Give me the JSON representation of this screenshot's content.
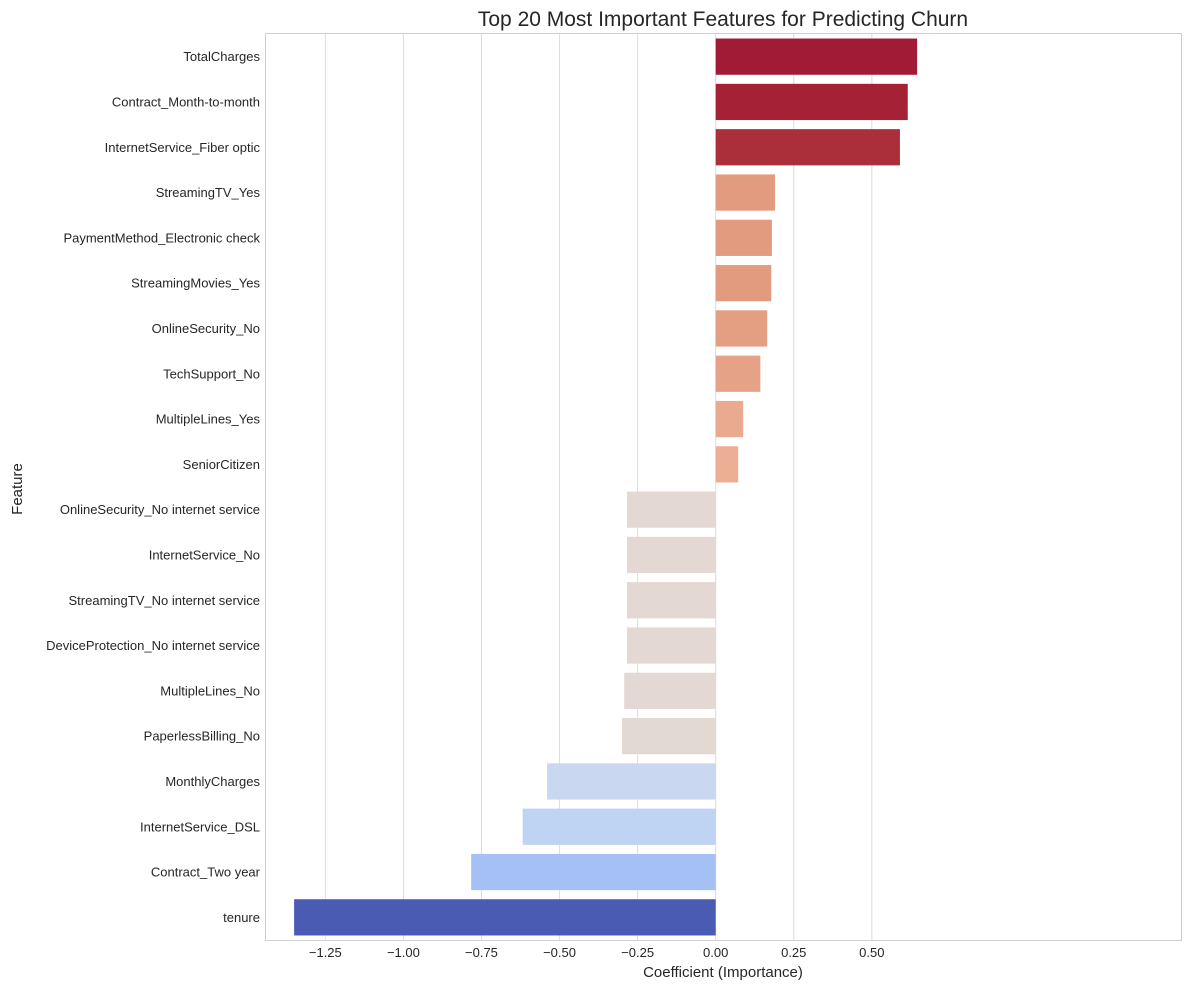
{
  "chart_data": {
    "type": "bar",
    "orientation": "horizontal",
    "title": "Top 20 Most Important Features for Predicting Churn",
    "xlabel": "Coefficient (Importance)",
    "ylabel": "Feature",
    "xlim": [
      -1.44,
      1.49
    ],
    "grid": "vertical",
    "xticks": [
      -1.25,
      -1.0,
      -0.75,
      -0.5,
      -0.25,
      0.0,
      0.25,
      0.5
    ],
    "xtick_labels": [
      "−1.25",
      "−1.00",
      "−0.75",
      "−0.50",
      "−0.25",
      "0.00",
      "0.25",
      "0.50"
    ],
    "categories": [
      "TotalCharges",
      "Contract_Month-to-month",
      "InternetService_Fiber optic",
      "StreamingTV_Yes",
      "PaymentMethod_Electronic check",
      "StreamingMovies_Yes",
      "OnlineSecurity_No",
      "TechSupport_No",
      "MultipleLines_Yes",
      "SeniorCitizen",
      "OnlineSecurity_No internet service",
      "InternetService_No",
      "StreamingTV_No internet service",
      "DeviceProtection_No internet service",
      "MultipleLines_No",
      "PaperlessBilling_No",
      "MonthlyCharges",
      "InternetService_DSL",
      "Contract_Two year",
      "tenure"
    ],
    "values": [
      0.645,
      0.615,
      0.59,
      0.19,
      0.18,
      0.178,
      0.165,
      0.143,
      0.088,
      0.072,
      -0.284,
      -0.284,
      -0.284,
      -0.284,
      -0.293,
      -0.3,
      -0.54,
      -0.618,
      -0.783,
      -1.35
    ],
    "colors": [
      "#a11a36",
      "#a52236",
      "#ab2f3b",
      "#e39b7f",
      "#e39b80",
      "#e39b80",
      "#e49f83",
      "#e6a286",
      "#eaaa90",
      "#ecaf96",
      "#e3d8d3",
      "#e3d8d3",
      "#e3d8d3",
      "#e3d8d3",
      "#e3d8d3",
      "#e3d9d3",
      "#c9d7f0",
      "#bfd3f3",
      "#a5c0f4",
      "#4a5bb4"
    ]
  }
}
